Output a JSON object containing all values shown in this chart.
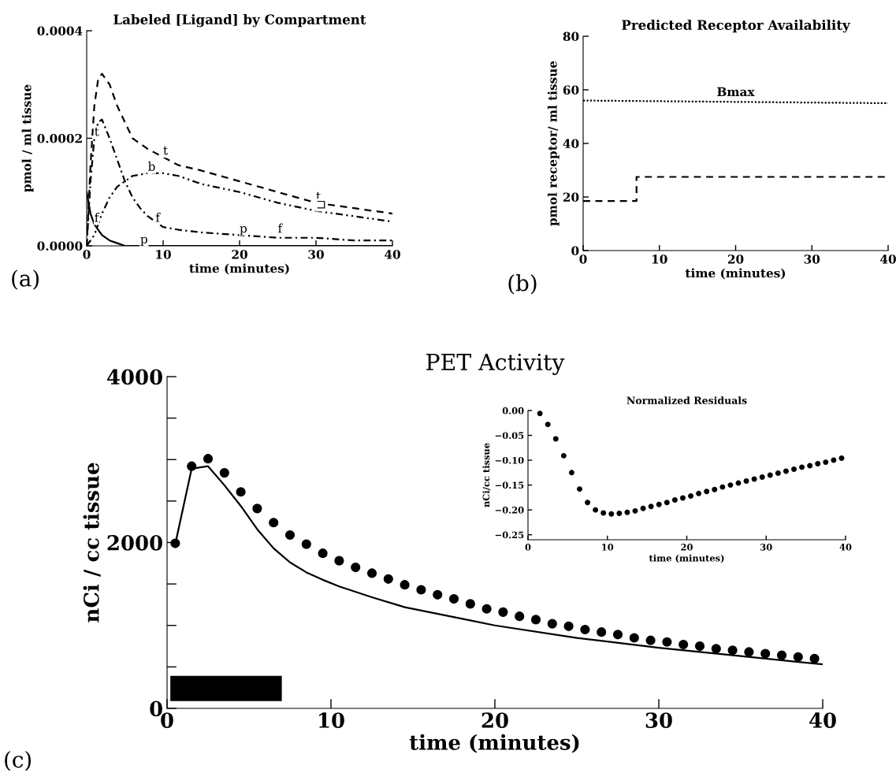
{
  "chart_data": [
    {
      "type": "line",
      "title": "Labeled [Ligand] by Compartment",
      "xlabel": "time (minutes)",
      "ylabel": "pmol / ml tissue",
      "xlim": [
        0,
        40
      ],
      "xticks": [
        0,
        10,
        20,
        30,
        40
      ],
      "ylim": [
        0,
        0.0004
      ],
      "yticks": [
        {
          "value": 0,
          "label": "0.0000"
        },
        {
          "value": 0.0002,
          "label": "0.0002"
        },
        {
          "value": 0.0004,
          "label": "0.0004"
        }
      ],
      "series": [
        {
          "color": "#000000",
          "line_style": "dashed",
          "x": [
            0,
            0.5,
            1,
            1.5,
            2,
            3,
            4,
            5,
            6,
            8,
            10,
            12,
            15,
            20,
            25,
            30,
            35,
            40
          ],
          "values": [
            0,
            0.00015,
            0.00026,
            0.00031,
            0.00032,
            0.0003,
            0.00026,
            0.00023,
            0.0002,
            0.00018,
            0.000165,
            0.00015,
            0.00014,
            0.00012,
            0.0001,
            8e-05,
            7e-05,
            6e-05
          ]
        },
        {
          "color": "#000000",
          "line_style": "dashdotdot",
          "x": [
            0,
            1,
            2,
            3,
            4,
            5,
            6,
            8,
            10,
            12,
            15,
            20,
            25,
            30,
            35,
            40
          ],
          "values": [
            0,
            2e-05,
            6e-05,
            9e-05,
            0.00011,
            0.00012,
            0.00013,
            0.000135,
            0.000135,
            0.00013,
            0.000115,
            0.0001,
            8e-05,
            6.5e-05,
            5.5e-05,
            4.5e-05
          ]
        },
        {
          "color": "#000000",
          "line_style": "dashdot",
          "x": [
            0,
            0.5,
            1,
            1.5,
            2,
            3,
            4,
            5,
            6,
            7,
            8,
            9,
            10,
            12,
            15,
            20,
            25,
            30,
            35,
            40
          ],
          "values": [
            0,
            0.00012,
            0.0002,
            0.00023,
            0.000235,
            0.0002,
            0.00016,
            0.00012,
            9e-05,
            7e-05,
            5.5e-05,
            4.5e-05,
            3.5e-05,
            3e-05,
            2.5e-05,
            2e-05,
            1.5e-05,
            1.5e-05,
            1e-05,
            1e-05
          ]
        },
        {
          "color": "#000000",
          "line_style": "solid",
          "x": [
            0,
            0.5,
            1,
            1.5,
            2,
            3,
            4,
            5,
            10,
            20,
            30,
            40
          ],
          "values": [
            0.0001,
            6e-05,
            4e-05,
            3e-05,
            2e-05,
            1e-05,
            5e-06,
            0,
            0,
            0,
            0,
            0
          ]
        }
      ],
      "annotations": [
        "(a)",
        {
          "text": "t",
          "x": 1,
          "y": 0.0002
        },
        {
          "text": "t",
          "x": 10,
          "y": 0.000165
        },
        {
          "text": "t",
          "x": 30,
          "y": 8e-05
        },
        {
          "text": "b",
          "x": 8,
          "y": 0.000135
        },
        {
          "text": "⊐",
          "x": 30,
          "y": 6.5e-05
        },
        {
          "text": "f",
          "x": 1,
          "y": 4e-05
        },
        {
          "text": "f",
          "x": 9,
          "y": 4e-05
        },
        {
          "text": "f",
          "x": 25,
          "y": 2e-05
        },
        {
          "text": "p",
          "x": 7,
          "y": 0
        },
        {
          "text": "p",
          "x": 20,
          "y": 2e-05
        }
      ]
    },
    {
      "type": "line",
      "title": "Predicted Receptor Availability",
      "xlabel": "time (minutes)",
      "ylabel": "pmol receptor/ ml tissue",
      "xlim": [
        0,
        40
      ],
      "xticks": [
        0,
        10,
        20,
        30,
        40
      ],
      "ylim": [
        0,
        80
      ],
      "yticks": [
        0,
        20,
        40,
        60,
        80
      ],
      "series": [
        {
          "name": "Bmax",
          "color": "#000000",
          "line_style": "dotted",
          "x": [
            0,
            40
          ],
          "values": [
            56,
            55
          ]
        },
        {
          "type": "step",
          "color": "#000000",
          "line_style": "dashed",
          "x": [
            0,
            7,
            40
          ],
          "values": [
            18.5,
            27.5,
            27.5
          ]
        }
      ],
      "annotations": [
        "(b)"
      ]
    },
    {
      "type": "line",
      "title": "PET Activity",
      "xlabel": "time (minutes)",
      "ylabel": "nCi / cc tissue",
      "xlim": [
        0,
        40
      ],
      "xticks": [
        0,
        10,
        20,
        30,
        40
      ],
      "ylim": [
        0,
        4000
      ],
      "yticks": [
        0,
        {
          "value": 500,
          "label": null
        },
        {
          "value": 1000,
          "label": null
        },
        {
          "value": 1500,
          "label": null
        },
        2000,
        {
          "value": 2500,
          "label": null
        },
        {
          "value": 3000,
          "label": null
        },
        {
          "value": 3500,
          "label": null
        },
        4000
      ],
      "bands": [
        {
          "axis": "x",
          "from": 0.2,
          "to": 7,
          "color": "#000000"
        }
      ],
      "series": [
        {
          "type": "scatter",
          "marker": "circle",
          "color": "#000000",
          "x": [
            0.5,
            1.5,
            2.5,
            3.5,
            4.5,
            5.5,
            6.5,
            7.5,
            8.5,
            9.5,
            10.5,
            11.5,
            12.5,
            13.5,
            14.5,
            15.5,
            16.5,
            17.5,
            18.5,
            19.5,
            20.5,
            21.5,
            22.5,
            23.5,
            24.5,
            25.5,
            26.5,
            27.5,
            28.5,
            29.5,
            30.5,
            31.5,
            32.5,
            33.5,
            34.5,
            35.5,
            36.5,
            37.5,
            38.5,
            39.5
          ],
          "values": [
            1990,
            2920,
            3010,
            2840,
            2610,
            2410,
            2240,
            2090,
            1980,
            1870,
            1780,
            1700,
            1630,
            1560,
            1490,
            1430,
            1370,
            1320,
            1260,
            1200,
            1160,
            1110,
            1070,
            1020,
            990,
            950,
            920,
            890,
            850,
            820,
            800,
            770,
            750,
            720,
            700,
            680,
            660,
            640,
            620,
            600
          ]
        },
        {
          "type": "line",
          "color": "#000000",
          "line_style": "solid",
          "x": [
            0.5,
            1.5,
            2.5,
            3.5,
            4.5,
            5.5,
            6.5,
            7.5,
            8.5,
            9.5,
            10.5,
            12.5,
            14.5,
            18.5,
            20,
            25,
            30,
            35,
            40
          ],
          "values": [
            1980,
            2890,
            2920,
            2690,
            2440,
            2160,
            1930,
            1760,
            1640,
            1550,
            1470,
            1340,
            1220,
            1060,
            1000,
            850,
            730,
            630,
            530
          ]
        }
      ],
      "annotations": [
        "(c)"
      ]
    },
    {
      "type": "scatter",
      "title": "Normalized Residuals",
      "xlabel": "time (minutes)",
      "ylabel": "nCi/cc tissue",
      "xlim": [
        0,
        40
      ],
      "xticks": [
        0,
        10,
        20,
        30,
        40
      ],
      "ylim": [
        -0.26,
        0
      ],
      "yticks": [
        {
          "value": 0,
          "label": "0.00"
        },
        {
          "value": -0.05,
          "label": "−0.05"
        },
        {
          "value": -0.1,
          "label": "−0.10"
        },
        {
          "value": -0.15,
          "label": "−0.15"
        },
        {
          "value": -0.2,
          "label": "−0.20"
        },
        {
          "value": -0.25,
          "label": "−0.25"
        }
      ],
      "series": [
        {
          "color": "#000000",
          "marker": "circle",
          "x": [
            1.5,
            2.5,
            3.5,
            4.5,
            5.5,
            6.5,
            7.5,
            8.5,
            9.5,
            10.5,
            11.5,
            12.5,
            13.5,
            14.5,
            15.5,
            16.5,
            17.5,
            18.5,
            19.5,
            20.5,
            21.5,
            22.5,
            23.5,
            24.5,
            25.5,
            26.5,
            27.5,
            28.5,
            29.5,
            30.5,
            31.5,
            32.5,
            33.5,
            34.5,
            35.5,
            36.5,
            37.5,
            38.5,
            39.5
          ],
          "values": [
            -0.006,
            -0.028,
            -0.057,
            -0.091,
            -0.125,
            -0.158,
            -0.185,
            -0.2,
            -0.206,
            -0.208,
            -0.207,
            -0.205,
            -0.202,
            -0.197,
            -0.193,
            -0.189,
            -0.185,
            -0.18,
            -0.176,
            -0.172,
            -0.167,
            -0.163,
            -0.159,
            -0.154,
            -0.15,
            -0.146,
            -0.142,
            -0.138,
            -0.134,
            -0.13,
            -0.126,
            -0.122,
            -0.118,
            -0.114,
            -0.111,
            -0.107,
            -0.104,
            -0.1,
            -0.096
          ]
        }
      ]
    }
  ]
}
